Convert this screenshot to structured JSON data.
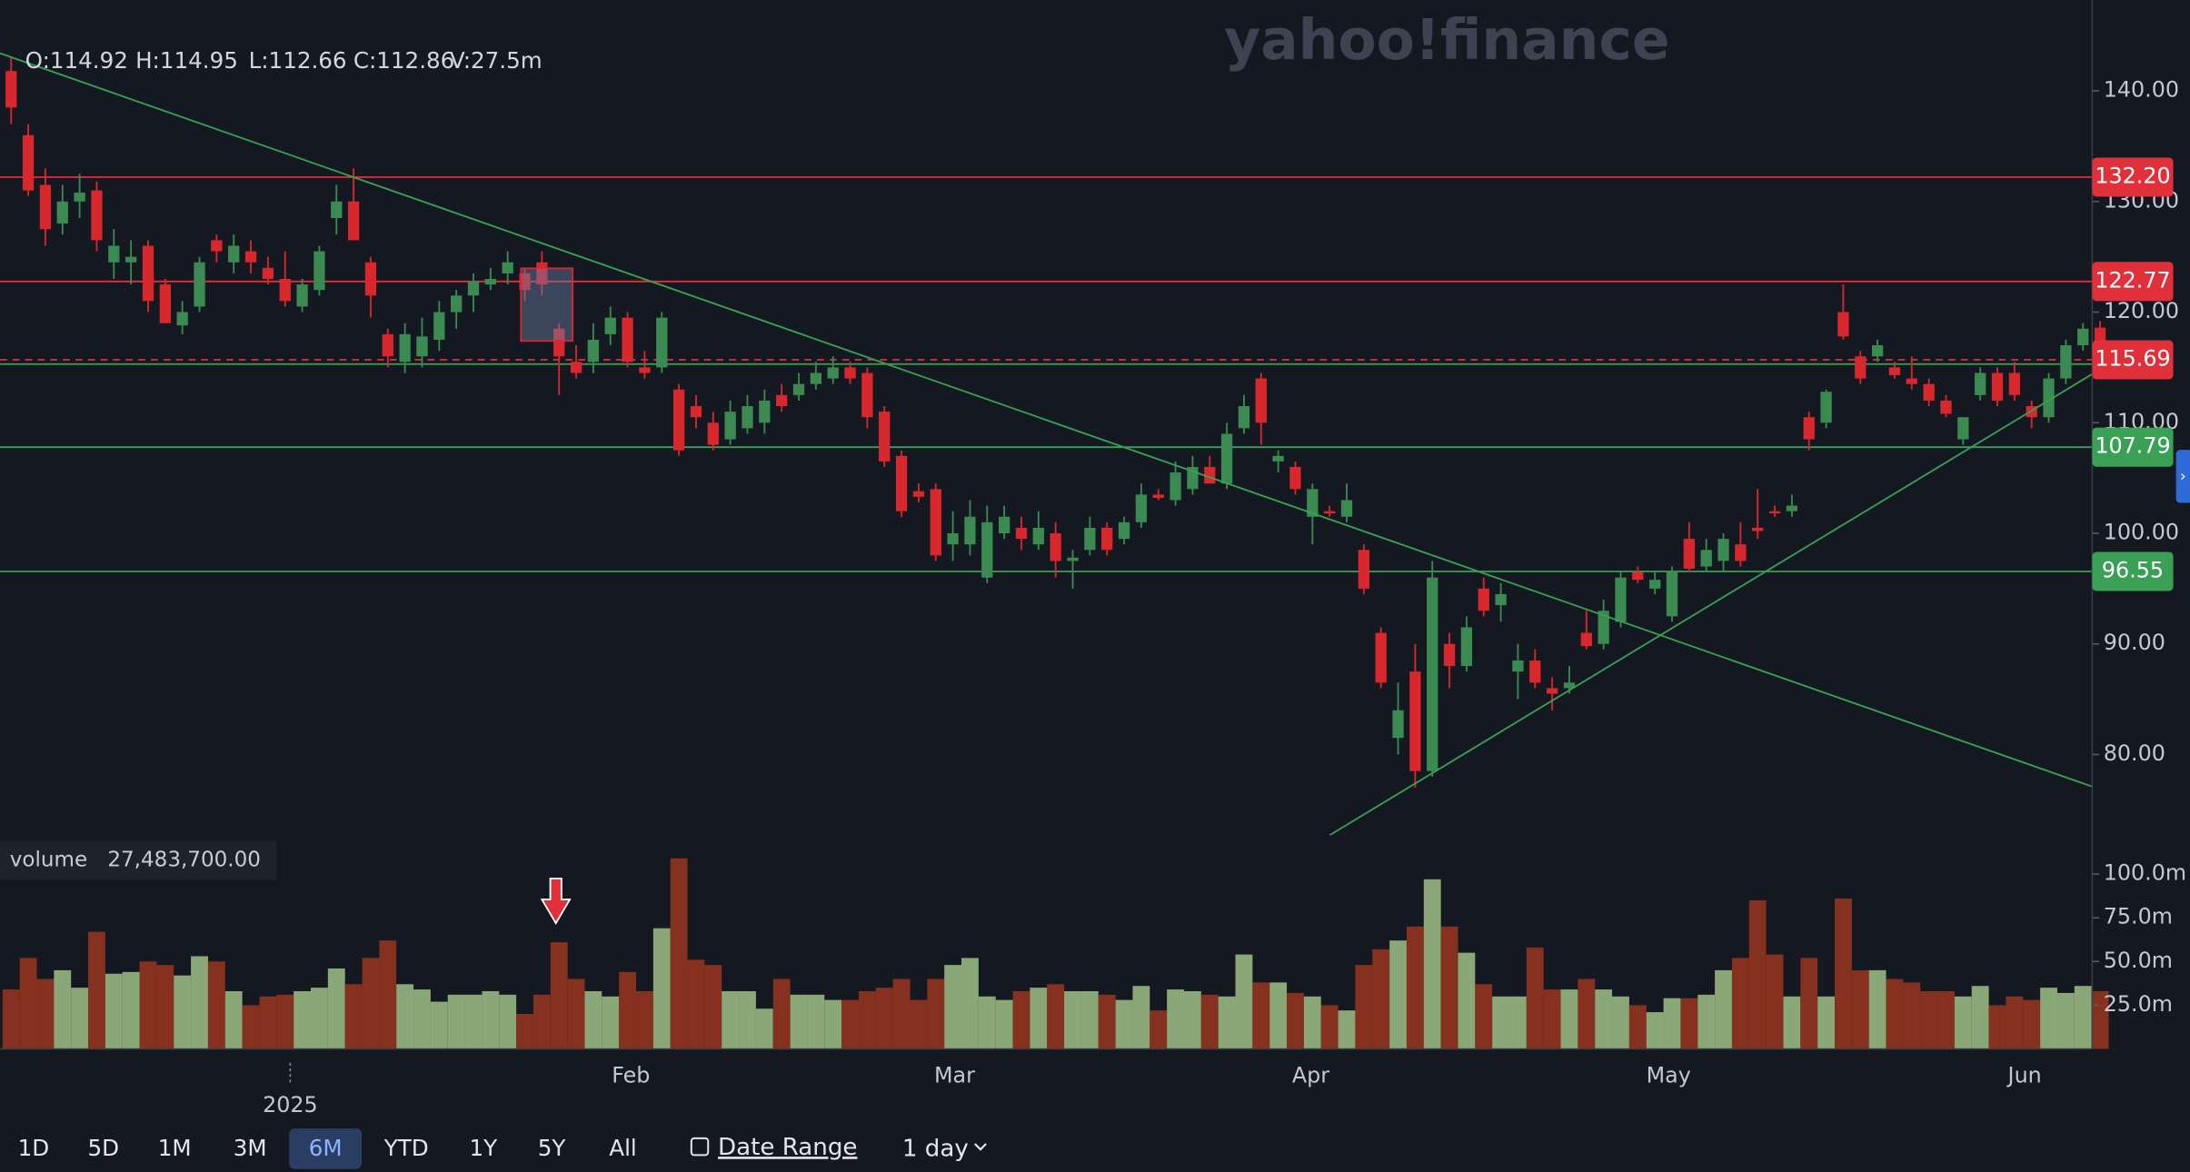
{
  "chart_data": {
    "type": "candlestick",
    "logo": "yahoo!finance",
    "header": [
      "O:114.92",
      "H:114.95",
      "L:112.66",
      "C:112.86",
      "V:27.5m"
    ],
    "up_color": "#3a8a52",
    "down_color": "#d9272e",
    "ylim": [
      72.7,
      148.2
    ],
    "yticks": [
      {
        "value": 80,
        "label": "80.00"
      },
      {
        "value": 90,
        "label": "90.00"
      },
      {
        "value": 100,
        "label": "100.00"
      },
      {
        "value": 110,
        "label": "110.00"
      },
      {
        "value": 120,
        "label": "120.00"
      },
      {
        "value": 130,
        "label": "130.00"
      },
      {
        "value": 140,
        "label": "140.00"
      }
    ],
    "xlim": [
      -0.65,
      121.54
    ],
    "xticks": [
      {
        "value": 36.2,
        "label": "Feb"
      },
      {
        "value": 55.1,
        "label": "Mar"
      },
      {
        "value": 75.9,
        "label": "Apr"
      },
      {
        "value": 96.8,
        "label": "May"
      },
      {
        "value": 117.6,
        "label": "Jun"
      }
    ],
    "year_ticks": [
      {
        "value": 16.3,
        "label": "2025"
      }
    ],
    "grid": true,
    "candles": [
      [
        141.8,
        143,
        137,
        138.5
      ],
      [
        136,
        137,
        130.5,
        131
      ],
      [
        131.5,
        133,
        126,
        127.5
      ],
      [
        128,
        131.5,
        127,
        130
      ],
      [
        130,
        132.5,
        128.5,
        130.8
      ],
      [
        131,
        131.8,
        125.5,
        126.5
      ],
      [
        124.5,
        127.5,
        123,
        126
      ],
      [
        124.5,
        126.5,
        122.5,
        125
      ],
      [
        126,
        126.5,
        120,
        121
      ],
      [
        122.5,
        123,
        119,
        119
      ],
      [
        118.8,
        121,
        118,
        120
      ],
      [
        120.5,
        125,
        120,
        124.5
      ],
      [
        126.5,
        127,
        124.5,
        125.5
      ],
      [
        124.5,
        127,
        123.5,
        126
      ],
      [
        125.5,
        126.5,
        123.5,
        124.5
      ],
      [
        124,
        125,
        122.5,
        123
      ],
      [
        123,
        125.5,
        120.5,
        121
      ],
      [
        120.5,
        123,
        120,
        122.5
      ],
      [
        122,
        126,
        121.5,
        125.5
      ],
      [
        128.5,
        131.5,
        127,
        130
      ],
      [
        130,
        133,
        126.5,
        126.5
      ],
      [
        124.5,
        125,
        119.5,
        121.5
      ],
      [
        118,
        118.5,
        115,
        116
      ],
      [
        115.5,
        119,
        114.5,
        118
      ],
      [
        116,
        119.5,
        115,
        117.8
      ],
      [
        117.5,
        121,
        116.5,
        120
      ],
      [
        120,
        122,
        118.5,
        121.5
      ],
      [
        121.5,
        123.5,
        120,
        122.8
      ],
      [
        122.5,
        124,
        122,
        123
      ],
      [
        123.5,
        125.5,
        122.5,
        124.5
      ],
      [
        123.5,
        124,
        121,
        122
      ],
      [
        124.5,
        125.5,
        121.5,
        122.5
      ],
      [
        118.5,
        119,
        112.5,
        116
      ],
      [
        115.5,
        117,
        114,
        114.5
      ],
      [
        115.5,
        119,
        114.5,
        117.5
      ],
      [
        118,
        120.5,
        117,
        119.5
      ],
      [
        119.5,
        120,
        115,
        115.5
      ],
      [
        115,
        116.5,
        114,
        114.5
      ],
      [
        115,
        120,
        114.5,
        119.5
      ],
      [
        113,
        113.5,
        107,
        107.5
      ],
      [
        111.5,
        112.5,
        109.5,
        110.5
      ],
      [
        110,
        111,
        107.5,
        108
      ],
      [
        108.5,
        112,
        108,
        111
      ],
      [
        109.5,
        112.5,
        109,
        111.5
      ],
      [
        110,
        113,
        109,
        112
      ],
      [
        112.5,
        113.5,
        111,
        111.5
      ],
      [
        112.5,
        114.5,
        112,
        113.5
      ],
      [
        113.5,
        115.5,
        113,
        114.5
      ],
      [
        114,
        116,
        113.5,
        115
      ],
      [
        115,
        115.5,
        113.5,
        114
      ],
      [
        114.5,
        115,
        109.5,
        110.5
      ],
      [
        111,
        111.5,
        106,
        106.5
      ],
      [
        107,
        107.5,
        101.5,
        102
      ],
      [
        103.8,
        104.5,
        102.8,
        103.3
      ],
      [
        104,
        104.5,
        97.5,
        98
      ],
      [
        99,
        102,
        97.5,
        100
      ],
      [
        99,
        103,
        98,
        101.5
      ],
      [
        96,
        102.5,
        95.5,
        101
      ],
      [
        100,
        102.5,
        99.5,
        101.5
      ],
      [
        100.5,
        101.5,
        98.5,
        99.5
      ],
      [
        99,
        102,
        98.5,
        100.5
      ],
      [
        100,
        101,
        96,
        97.5
      ],
      [
        97.5,
        98.5,
        95,
        97.8
      ],
      [
        98.5,
        101.5,
        98,
        100.5
      ],
      [
        100.5,
        101,
        98,
        98.5
      ],
      [
        99.5,
        101.5,
        99,
        101
      ],
      [
        101,
        104.5,
        100.5,
        103.5
      ],
      [
        103.5,
        104,
        103,
        103.2
      ],
      [
        103,
        106.5,
        102.5,
        105.5
      ],
      [
        104,
        107,
        103.5,
        106
      ],
      [
        106,
        107,
        104.5,
        104.5
      ],
      [
        104.5,
        110,
        104,
        109
      ],
      [
        109.5,
        112.5,
        109,
        111.5
      ],
      [
        114,
        114.5,
        108,
        110
      ],
      [
        106.5,
        107.5,
        105.5,
        107
      ],
      [
        106,
        106.5,
        103.5,
        104
      ],
      [
        101.5,
        104.5,
        99,
        104
      ],
      [
        102,
        102.5,
        101.5,
        101.8
      ],
      [
        101.5,
        104.5,
        101,
        103
      ],
      [
        98.5,
        99,
        94.5,
        95
      ],
      [
        91,
        91.5,
        86,
        86.5
      ],
      [
        81.5,
        86.5,
        80,
        84
      ],
      [
        87.5,
        90,
        77,
        78.5
      ],
      [
        78.5,
        97.5,
        78,
        96
      ],
      [
        90,
        91,
        86,
        88
      ],
      [
        88,
        92.5,
        87.5,
        91.5
      ],
      [
        95,
        96,
        92.5,
        93
      ],
      [
        93.5,
        95.5,
        92,
        94.5
      ],
      [
        87.5,
        90,
        85,
        88.5
      ],
      [
        88.5,
        89.5,
        86,
        86.5
      ],
      [
        86,
        87,
        84,
        85.5
      ],
      [
        86,
        88,
        85.5,
        86.5
      ],
      [
        91,
        93,
        89.5,
        89.8
      ],
      [
        90,
        94,
        89.5,
        93
      ],
      [
        92,
        96.5,
        91.5,
        96
      ],
      [
        96.5,
        97,
        95.5,
        95.8
      ],
      [
        95,
        96.5,
        94.5,
        95.8
      ],
      [
        92.5,
        97,
        92,
        96.5
      ],
      [
        99.5,
        101,
        96.5,
        96.8
      ],
      [
        97,
        99.5,
        96.5,
        98.5
      ],
      [
        97.5,
        100,
        96.5,
        99.5
      ],
      [
        99,
        101,
        97,
        97.5
      ],
      [
        100.5,
        104,
        99.5,
        100.2
      ],
      [
        102,
        102.5,
        101.5,
        101.8
      ],
      [
        102,
        103.5,
        101.5,
        102.5
      ],
      [
        110.5,
        111,
        107.5,
        108.5
      ],
      [
        110,
        113,
        109.5,
        112.8
      ],
      [
        120,
        122.5,
        117.5,
        117.8
      ],
      [
        116,
        116.5,
        113.5,
        114
      ],
      [
        116,
        117.5,
        115.5,
        117
      ],
      [
        115,
        115.5,
        114,
        114.3
      ],
      [
        114,
        116,
        113,
        113.5
      ],
      [
        113.5,
        114,
        111.5,
        112
      ],
      [
        112,
        112.5,
        110.5,
        110.8
      ],
      [
        108.5,
        110.5,
        108,
        110.5
      ],
      [
        112.5,
        115,
        112,
        114.5
      ],
      [
        114.5,
        115,
        111.5,
        112
      ],
      [
        114.5,
        115.5,
        112,
        112.5
      ],
      [
        111.5,
        112,
        109.5,
        110.5
      ],
      [
        110.5,
        114.5,
        110,
        114
      ],
      [
        114,
        117.5,
        113.5,
        117
      ],
      [
        117,
        119,
        116.5,
        118.5
      ],
      [
        118.6,
        119.2,
        115.2,
        115.69
      ]
    ],
    "volume": {
      "label": "volume",
      "value_text": "27,483,700.00",
      "up_color": "#8aa877",
      "down_color": "#86301f",
      "ylim": [
        0,
        119
      ],
      "yticks": [
        {
          "value": 25,
          "label": "25.0m"
        },
        {
          "value": 50,
          "label": "50.0m"
        },
        {
          "value": 75,
          "label": "75.0m"
        },
        {
          "value": 100,
          "label": "100.0m"
        }
      ],
      "values": [
        34,
        52,
        40,
        45,
        35,
        67,
        43,
        44,
        50,
        48,
        42,
        53,
        50,
        33,
        25,
        30,
        31,
        33,
        35,
        46,
        37,
        52,
        62,
        37,
        34,
        27,
        31,
        31,
        33,
        31,
        20,
        31,
        61,
        40,
        33,
        30,
        44,
        33,
        69,
        109,
        51,
        48,
        33,
        33,
        23,
        40,
        31,
        31,
        28,
        28,
        33,
        35,
        40,
        28,
        40,
        48,
        52,
        30,
        28,
        33,
        35,
        37,
        33,
        33,
        31,
        28,
        36,
        22,
        34,
        33,
        31,
        30,
        54,
        38,
        38,
        32,
        30,
        25,
        22,
        48,
        57,
        62,
        70,
        97,
        70,
        55,
        37,
        30,
        30,
        58,
        34,
        34,
        40,
        34,
        30,
        25,
        21,
        29,
        29,
        31,
        45,
        52,
        85,
        54,
        30,
        52,
        30,
        86,
        45,
        45,
        40,
        38,
        33,
        33,
        30,
        36,
        25,
        30,
        28,
        35,
        32,
        36,
        33
      ]
    },
    "levels": [
      {
        "value": 132.2,
        "label": "132.20",
        "color": "#e0303a"
      },
      {
        "value": 122.77,
        "label": "122.77",
        "color": "#e0303a"
      },
      {
        "value": 115.3,
        "color": "#3aa055"
      },
      {
        "value": 115.69,
        "label": "115.69",
        "color": "#e0303a",
        "style": "dashed"
      },
      {
        "value": 107.79,
        "label": "107.79",
        "color": "#3aa055"
      },
      {
        "value": 96.55,
        "label": "96.55",
        "color": "#3aa055"
      }
    ],
    "trendlines": [
      {
        "start": [
          -0.65,
          143.4
        ],
        "end": [
          121.54,
          77.1
        ],
        "color": "#3aa055"
      },
      {
        "start": [
          77,
          72.7
        ],
        "end": [
          121.54,
          114.4
        ],
        "color": "#3aa055"
      }
    ],
    "toolbar": {
      "ranges": [
        "1D",
        "5D",
        "1M",
        "3M",
        "6M",
        "YTD",
        "1Y",
        "5Y",
        "All"
      ],
      "active": "6M",
      "date_range": "Date Range",
      "interval": "1 day"
    }
  }
}
